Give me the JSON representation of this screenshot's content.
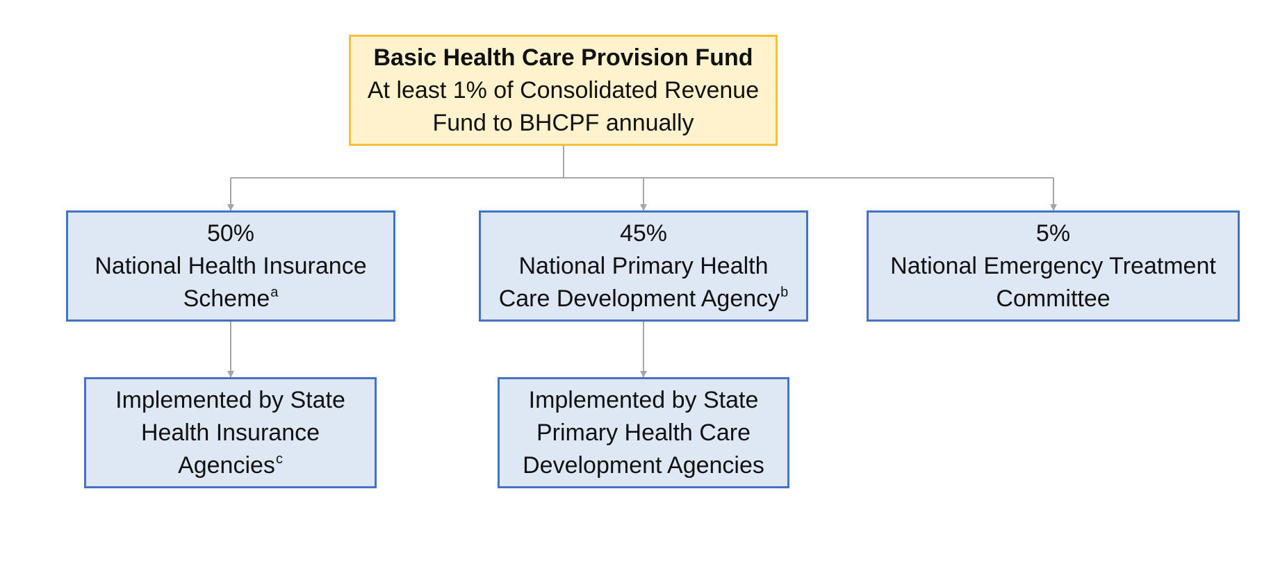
{
  "top_box": {
    "title": "Basic Health Care Provision Fund",
    "line_1": "At least 1% of Consolidated Revenue",
    "line_2": "Fund to BHCPF annually"
  },
  "allocations": [
    {
      "percent": "50%",
      "line_1": "National Health Insurance",
      "line_2": "Scheme",
      "superscript": "a"
    },
    {
      "percent": "45%",
      "line_1": "National Primary Health",
      "line_2": "Care Development Agency",
      "superscript": "b"
    },
    {
      "percent": "5%",
      "line_1": "National Emergency Treatment",
      "line_2": "Committee"
    }
  ],
  "implementers": [
    {
      "line_1": "Implemented by State",
      "line_2": "Health Insurance",
      "line_3": "Agencies",
      "superscript": "c"
    },
    {
      "line_1": "Implemented by State",
      "line_2": "Primary Health Care",
      "line_3": "Development Agencies"
    }
  ],
  "colors": {
    "top_fill": "#fff2cc",
    "top_border": "#f6bf38",
    "node_fill": "#dee8f4",
    "node_border": "#4472c4",
    "connector": "#a6a6a6"
  }
}
